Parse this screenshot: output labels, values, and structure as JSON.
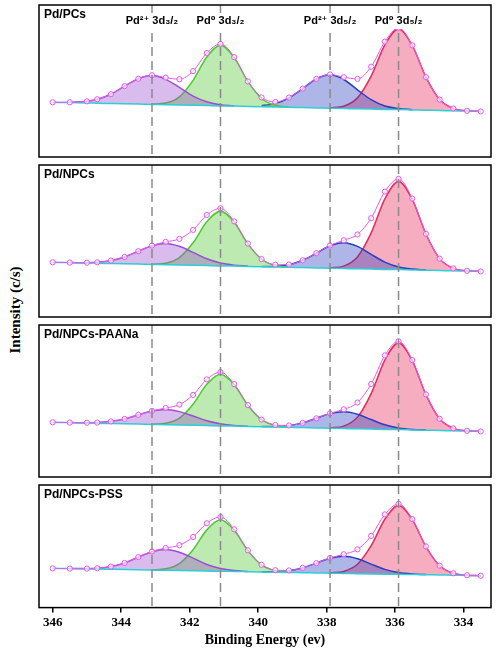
{
  "ylabel": "Intensity (c/s)",
  "annotations": [
    {
      "x": 343.1,
      "label": "Pd²⁺ 3d₃/₂"
    },
    {
      "x": 341.1,
      "label": "Pd⁰ 3d₃/₂"
    },
    {
      "x": 337.9,
      "label": "Pd²⁺ 3d₅/₂"
    },
    {
      "x": 335.9,
      "label": "Pd⁰ 3d₅/₂"
    }
  ],
  "chart_data": [
    {
      "type": "line",
      "title": "Pd/PCs",
      "grid": false,
      "tick_labels": false,
      "xlim": [
        346.4,
        333.2
      ],
      "ylim": [
        0,
        100
      ],
      "x": [
        346,
        345.5,
        345,
        344.7,
        344.3,
        343.9,
        343.5,
        343.1,
        342.7,
        342.3,
        341.9,
        341.5,
        341.1,
        340.7,
        340.3,
        339.9,
        339.5,
        339.1,
        338.7,
        338.3,
        337.9,
        337.5,
        337.1,
        336.7,
        336.3,
        335.9,
        335.5,
        335.1,
        334.7,
        334.3,
        333.9,
        333.5
      ],
      "series": [
        {
          "type": "area",
          "color": "#9a4fd0",
          "values": [
            null,
            36.0,
            36.6,
            38.0,
            41.3,
            46.6,
            51.5,
            53.6,
            51.1,
            45.8,
            40.1,
            36.4,
            34.4,
            33.7,
            null,
            null,
            null,
            null,
            null,
            null,
            null,
            null,
            null,
            null,
            null,
            null,
            null,
            null,
            null,
            null,
            null,
            null
          ]
        },
        {
          "type": "area",
          "color": "#4ec832",
          "values": [
            null,
            null,
            null,
            null,
            null,
            null,
            null,
            34.8,
            35.5,
            39.6,
            50.4,
            65.8,
            73.6,
            65.5,
            49.7,
            38.5,
            34.0,
            32.9,
            null,
            null,
            null,
            null,
            null,
            null,
            null,
            null,
            null,
            null,
            null,
            null,
            null,
            null
          ]
        },
        {
          "type": "area",
          "color": "#2a3fc0",
          "values": [
            null,
            null,
            null,
            null,
            null,
            null,
            null,
            null,
            null,
            null,
            null,
            null,
            null,
            null,
            null,
            33.8,
            35.1,
            38.9,
            45.0,
            51.4,
            54.1,
            51.0,
            44.2,
            37.7,
            33.5,
            31.9,
            31.1,
            null,
            null,
            null,
            null,
            null
          ]
        },
        {
          "type": "area",
          "color": "#e8285a",
          "values": [
            null,
            null,
            null,
            null,
            null,
            null,
            null,
            null,
            null,
            null,
            null,
            null,
            null,
            null,
            null,
            null,
            null,
            null,
            null,
            null,
            32.3,
            33.4,
            38.9,
            53.2,
            73.7,
            84.2,
            73.4,
            52.5,
            37.8,
            31.9,
            30.4,
            30.0
          ]
        },
        {
          "type": "line",
          "color": "#2ccfd6",
          "values": [
            36.0,
            35.8,
            35.5,
            35.4,
            35.2,
            35.0,
            34.8,
            34.6,
            34.4,
            34.2,
            34.0,
            33.8,
            33.6,
            33.5,
            33.3,
            33.1,
            32.9,
            32.7,
            32.5,
            32.3,
            32.1,
            31.9,
            31.7,
            31.5,
            31.3,
            31.2,
            31.0,
            30.8,
            30.6,
            30.4,
            30.2,
            30.0
          ]
        },
        {
          "type": "line",
          "color": "#e05ae8",
          "marker": "circle",
          "values": [
            36.0,
            36.0,
            36.6,
            38.0,
            41.3,
            46.6,
            51.5,
            53.8,
            52.2,
            51.2,
            56.5,
            68.4,
            74.4,
            65.7,
            49.7,
            39.2,
            36.2,
            39.1,
            45.0,
            51.4,
            54.3,
            52.5,
            51.4,
            59.4,
            75.9,
            84.9,
            73.5,
            52.5,
            37.8,
            31.9,
            30.4,
            30.0
          ]
        }
      ]
    },
    {
      "type": "line",
      "title": "Pd/NPCs",
      "grid": false,
      "tick_labels": false,
      "xlim": [
        346.4,
        333.2
      ],
      "ylim": [
        0,
        100
      ],
      "x": [
        346,
        345.5,
        345,
        344.7,
        344.3,
        343.9,
        343.5,
        343.1,
        342.7,
        342.3,
        341.9,
        341.5,
        341.1,
        340.7,
        340.3,
        339.9,
        339.5,
        339.1,
        338.7,
        338.3,
        337.9,
        337.5,
        337.1,
        336.7,
        336.3,
        335.9,
        335.5,
        335.1,
        334.7,
        334.3,
        333.9,
        333.5
      ],
      "series": [
        {
          "type": "area",
          "color": "#9a4fd0",
          "values": [
            null,
            35.8,
            35.7,
            36.0,
            37.1,
            39.5,
            43.3,
            46.9,
            48.4,
            46.5,
            42.5,
            38.3,
            35.5,
            34.1,
            33.5,
            null,
            null,
            null,
            null,
            null,
            null,
            null,
            null,
            null,
            null,
            null,
            null,
            null,
            null,
            null,
            null,
            null
          ]
        },
        {
          "type": "area",
          "color": "#4ec832",
          "values": [
            null,
            null,
            null,
            null,
            null,
            null,
            null,
            34.7,
            35.4,
            39.1,
            48.8,
            62.6,
            69.6,
            62.3,
            48.1,
            38.0,
            33.9,
            32.8,
            null,
            null,
            null,
            null,
            null,
            null,
            null,
            null,
            null,
            null,
            null,
            null,
            null,
            null
          ]
        },
        {
          "type": "area",
          "color": "#2a3fc0",
          "values": [
            null,
            null,
            null,
            null,
            null,
            null,
            null,
            null,
            null,
            null,
            null,
            null,
            null,
            null,
            null,
            33.2,
            33.4,
            34.4,
            37.3,
            42.0,
            46.9,
            48.9,
            46.5,
            41.2,
            36.1,
            32.9,
            31.5,
            30.9,
            null,
            null,
            null,
            null
          ]
        },
        {
          "type": "area",
          "color": "#e8285a",
          "values": [
            null,
            null,
            null,
            null,
            null,
            null,
            null,
            null,
            null,
            null,
            null,
            null,
            null,
            null,
            null,
            null,
            null,
            null,
            null,
            null,
            32.3,
            33.5,
            39.5,
            55.3,
            77.7,
            89.2,
            77.4,
            54.6,
            38.4,
            32.0,
            30.4,
            30.0
          ]
        },
        {
          "type": "line",
          "color": "#2ccfd6",
          "values": [
            36.0,
            35.8,
            35.5,
            35.4,
            35.2,
            35.0,
            34.8,
            34.6,
            34.4,
            34.2,
            34.0,
            33.8,
            33.6,
            33.5,
            33.3,
            33.1,
            32.9,
            32.7,
            32.5,
            32.3,
            32.1,
            31.9,
            31.7,
            31.5,
            31.3,
            31.2,
            31.0,
            30.8,
            30.6,
            30.4,
            30.2,
            30.0
          ]
        },
        {
          "type": "line",
          "color": "#e05ae8",
          "marker": "circle",
          "values": [
            36.0,
            35.8,
            35.7,
            36.0,
            37.1,
            39.5,
            43.3,
            47.0,
            49.4,
            51.4,
            57.3,
            67.1,
            71.5,
            62.9,
            48.3,
            38.1,
            34.4,
            34.5,
            37.3,
            42.0,
            47.1,
            50.5,
            54.3,
            65.0,
            82.5,
            90.9,
            77.9,
            54.7,
            38.4,
            32.0,
            30.4,
            30.0
          ]
        }
      ]
    },
    {
      "type": "line",
      "title": "Pd/NPCs-PAANa",
      "grid": false,
      "tick_labels": false,
      "xlim": [
        346.4,
        333.2
      ],
      "ylim": [
        0,
        100
      ],
      "x": [
        346,
        345.5,
        345,
        344.7,
        344.3,
        343.9,
        343.5,
        343.1,
        342.7,
        342.3,
        341.9,
        341.5,
        341.1,
        340.7,
        340.3,
        339.9,
        339.5,
        339.1,
        338.7,
        338.3,
        337.9,
        337.5,
        337.1,
        336.7,
        336.3,
        335.9,
        335.5,
        335.1,
        334.7,
        334.3,
        333.9,
        333.5
      ],
      "series": [
        {
          "type": "area",
          "color": "#9a4fd0",
          "values": [
            null,
            35.8,
            35.7,
            35.8,
            36.6,
            38.2,
            40.9,
            43.4,
            44.4,
            43.0,
            40.1,
            37.0,
            35.0,
            33.9,
            33.4,
            null,
            null,
            null,
            null,
            null,
            null,
            null,
            null,
            null,
            null,
            null,
            null,
            null,
            null,
            null,
            null,
            null
          ]
        },
        {
          "type": "area",
          "color": "#4ec832",
          "values": [
            null,
            null,
            null,
            null,
            null,
            null,
            null,
            34.7,
            35.4,
            38.8,
            47.9,
            61.0,
            67.6,
            60.7,
            47.2,
            37.7,
            33.9,
            32.8,
            null,
            null,
            null,
            null,
            null,
            null,
            null,
            null,
            null,
            null,
            null,
            null,
            null,
            null
          ]
        },
        {
          "type": "area",
          "color": "#2a3fc0",
          "values": [
            null,
            null,
            null,
            null,
            null,
            null,
            null,
            null,
            null,
            null,
            null,
            null,
            null,
            null,
            null,
            33.2,
            33.2,
            33.8,
            35.6,
            38.6,
            41.7,
            42.9,
            41.3,
            37.8,
            34.4,
            32.3,
            31.3,
            30.9,
            null,
            null,
            null,
            null
          ]
        },
        {
          "type": "area",
          "color": "#e8285a",
          "values": [
            null,
            null,
            null,
            null,
            null,
            null,
            null,
            null,
            null,
            null,
            null,
            null,
            null,
            null,
            null,
            null,
            null,
            null,
            null,
            null,
            32.3,
            33.5,
            39.4,
            54.9,
            76.9,
            88.2,
            76.6,
            54.2,
            38.3,
            32.0,
            30.4,
            30.0
          ]
        },
        {
          "type": "line",
          "color": "#2ccfd6",
          "values": [
            36.0,
            35.8,
            35.5,
            35.4,
            35.2,
            35.0,
            34.8,
            34.6,
            34.4,
            34.2,
            34.0,
            33.8,
            33.6,
            33.5,
            33.3,
            33.1,
            32.9,
            32.7,
            32.5,
            32.3,
            32.1,
            31.9,
            31.7,
            31.5,
            31.3,
            31.2,
            31.0,
            30.8,
            30.6,
            30.4,
            30.2,
            30.0
          ]
        },
        {
          "type": "line",
          "color": "#e05ae8",
          "marker": "circle",
          "values": [
            36.0,
            35.8,
            35.7,
            35.8,
            36.6,
            38.2,
            40.9,
            43.5,
            45.4,
            47.6,
            54.0,
            64.2,
            69.0,
            61.1,
            47.3,
            37.8,
            34.2,
            33.9,
            35.6,
            38.6,
            41.9,
            44.5,
            49.0,
            61.2,
            80.0,
            89.3,
            76.9,
            54.3,
            38.3,
            32.0,
            30.4,
            30.0
          ]
        }
      ]
    },
    {
      "type": "line",
      "title": "Pd/NPCs-PSS",
      "grid": false,
      "tick_labels": "x",
      "xlabel": "Binding Energy (ev)",
      "xlim": [
        346.4,
        333.2
      ],
      "xticks": [
        346,
        344,
        342,
        340,
        338,
        336,
        334
      ],
      "ylim": [
        0,
        100
      ],
      "x": [
        346,
        345.5,
        345,
        344.7,
        344.3,
        343.9,
        343.5,
        343.1,
        342.7,
        342.3,
        341.9,
        341.5,
        341.1,
        340.7,
        340.3,
        339.9,
        339.5,
        339.1,
        338.7,
        338.3,
        337.9,
        337.5,
        337.1,
        336.7,
        336.3,
        335.9,
        335.5,
        335.1,
        334.7,
        334.3,
        333.9,
        333.5
      ],
      "series": [
        {
          "type": "area",
          "color": "#9a4fd0",
          "values": [
            null,
            31.8,
            31.8,
            32.1,
            33.5,
            36.4,
            41.2,
            45.6,
            47.4,
            45.2,
            40.4,
            35.2,
            31.9,
            30.2,
            29.5,
            null,
            null,
            null,
            null,
            null,
            null,
            null,
            null,
            null,
            null,
            null,
            null,
            null,
            null,
            null,
            null,
            null
          ]
        },
        {
          "type": "area",
          "color": "#4ec832",
          "values": [
            null,
            null,
            null,
            null,
            null,
            null,
            null,
            30.8,
            31.6,
            35.9,
            47.2,
            63.4,
            71.6,
            63.1,
            46.5,
            34.8,
            30.1,
            28.9,
            null,
            null,
            null,
            null,
            null,
            null,
            null,
            null,
            null,
            null,
            null,
            null,
            null,
            null
          ]
        },
        {
          "type": "area",
          "color": "#2a3fc0",
          "values": [
            null,
            null,
            null,
            null,
            null,
            null,
            null,
            null,
            null,
            null,
            null,
            null,
            null,
            null,
            null,
            29.2,
            29.3,
            30.1,
            32.4,
            36.3,
            40.3,
            41.9,
            39.9,
            35.5,
            31.2,
            28.6,
            27.4,
            26.9,
            null,
            null,
            null,
            null
          ]
        },
        {
          "type": "area",
          "color": "#e8285a",
          "values": [
            null,
            null,
            null,
            null,
            null,
            null,
            null,
            null,
            null,
            null,
            null,
            null,
            null,
            null,
            null,
            null,
            null,
            null,
            null,
            null,
            28.3,
            29.5,
            35.3,
            50.5,
            72.1,
            83.2,
            71.8,
            49.8,
            34.2,
            28.0,
            26.4,
            26.0
          ]
        },
        {
          "type": "line",
          "color": "#2ccfd6",
          "values": [
            32.0,
            31.8,
            31.5,
            31.4,
            31.2,
            31.0,
            30.8,
            30.6,
            30.4,
            30.2,
            30.0,
            29.8,
            29.6,
            29.5,
            29.3,
            29.1,
            28.9,
            28.7,
            28.5,
            28.3,
            28.1,
            27.9,
            27.7,
            27.5,
            27.3,
            27.2,
            27.0,
            26.8,
            26.6,
            26.4,
            26.2,
            26.0
          ]
        },
        {
          "type": "line",
          "color": "#e05ae8",
          "marker": "circle",
          "values": [
            32.0,
            31.8,
            31.8,
            32.1,
            33.5,
            36.4,
            41.2,
            45.8,
            48.6,
            50.9,
            57.6,
            68.8,
            73.9,
            63.8,
            46.7,
            34.9,
            30.5,
            30.3,
            32.4,
            36.3,
            40.5,
            43.5,
            47.5,
            58.5,
            76.0,
            84.6,
            72.2,
            49.9,
            34.2,
            28.0,
            26.4,
            26.0
          ]
        }
      ]
    }
  ]
}
